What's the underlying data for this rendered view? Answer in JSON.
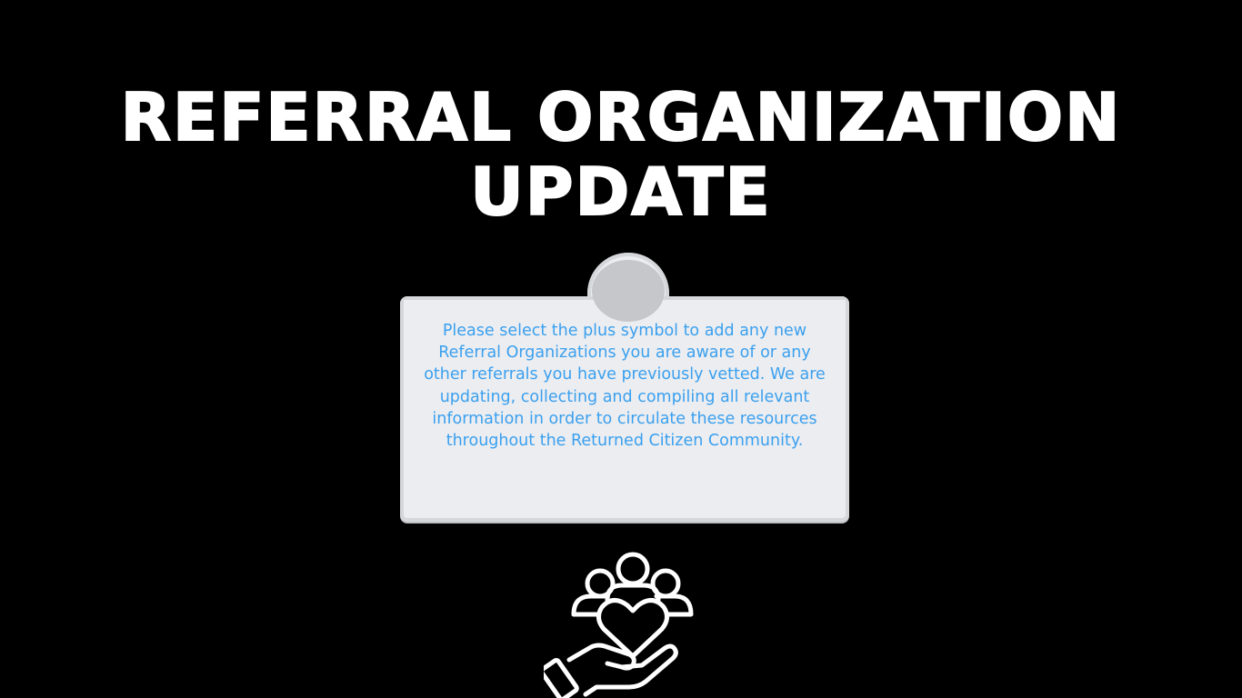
{
  "title": {
    "line1": "REFERRAL ORGANIZATION",
    "line2": "UPDATE"
  },
  "card": {
    "text": "Please select the plus symbol to add any new Referral Organizations you are aware of or any other referrals you have previously vetted.  We are updating, collecting and compiling all relevant information in order to circulate these resources throughout the Returned Citizen Community."
  },
  "icons": {
    "community": "community-care-icon"
  },
  "colors": {
    "background": "#000000",
    "title": "#ffffff",
    "card_text": "#3aa0ef",
    "card_bg": "#ecedf0"
  }
}
